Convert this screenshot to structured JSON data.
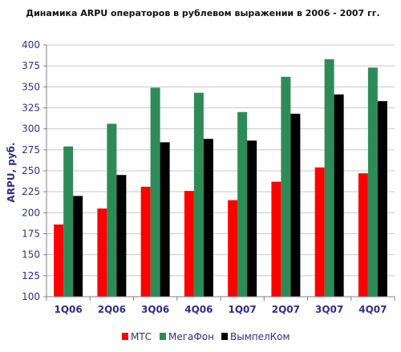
{
  "chart_data": {
    "type": "bar",
    "title": "Динамика ARPU операторов в рублевом выражении в 2006 - 2007 гг.",
    "xlabel": "",
    "ylabel": "ARPU, руб.",
    "ylim": [
      100,
      400
    ],
    "ytick_step": 25,
    "grid": true,
    "legend_position": "bottom",
    "categories": [
      "1Q06",
      "2Q06",
      "3Q06",
      "4Q06",
      "1Q07",
      "2Q07",
      "3Q07",
      "4Q07"
    ],
    "series": [
      {
        "name": "МТС",
        "color": "#ff0000",
        "values": [
          186,
          205,
          231,
          226,
          215,
          237,
          254,
          247
        ]
      },
      {
        "name": "МегаФон",
        "color": "#2e8b57",
        "values": [
          279,
          306,
          349,
          343,
          320,
          362,
          383,
          373
        ]
      },
      {
        "name": "ВымпелКом",
        "color": "#000000",
        "values": [
          220,
          245,
          284,
          288,
          286,
          318,
          341,
          333
        ]
      }
    ]
  }
}
